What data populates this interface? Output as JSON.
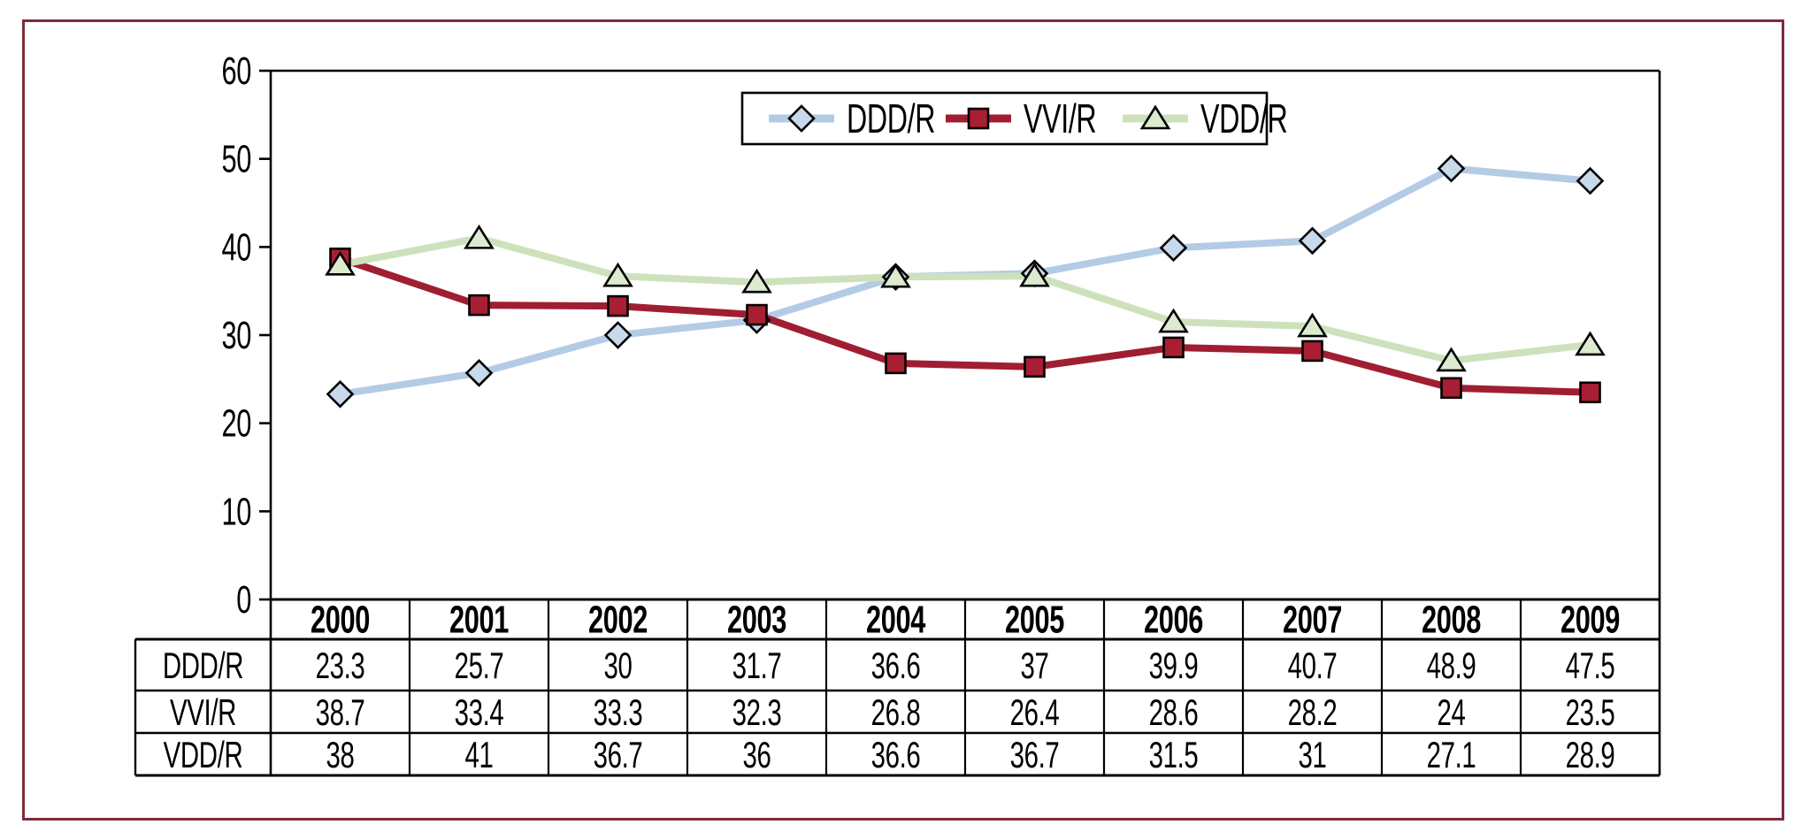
{
  "frame": {
    "border_color": "#7e2b3c",
    "background_color": "#ffffff"
  },
  "chart_data": {
    "type": "line",
    "title": "",
    "xlabel": "",
    "ylabel": "",
    "categories": [
      "2000",
      "2001",
      "2002",
      "2003",
      "2004",
      "2005",
      "2006",
      "2007",
      "2008",
      "2009"
    ],
    "series": [
      {
        "name": "DDD/R",
        "marker": "diamond",
        "line_color": "#b3cbe5",
        "marker_fill": "#c9d9ec",
        "marker_stroke": "#000000",
        "values": [
          23.3,
          25.7,
          30,
          31.7,
          36.6,
          37,
          39.9,
          40.7,
          48.9,
          47.5
        ]
      },
      {
        "name": "VVI/R",
        "marker": "square",
        "line_color": "#a01e32",
        "marker_fill": "#a81e33",
        "marker_stroke": "#000000",
        "values": [
          38.7,
          33.4,
          33.3,
          32.3,
          26.8,
          26.4,
          28.6,
          28.2,
          24,
          23.5
        ]
      },
      {
        "name": "VDD/R",
        "marker": "triangle",
        "line_color": "#cde2bc",
        "marker_fill": "#dcead0",
        "marker_stroke": "#000000",
        "values": [
          38,
          41,
          36.7,
          36,
          36.6,
          36.7,
          31.5,
          31,
          27.1,
          28.9
        ]
      }
    ],
    "ylim": [
      0,
      60
    ],
    "yticks": [
      0,
      10,
      20,
      30,
      40,
      50,
      60
    ],
    "grid": false,
    "axis_color": "#000000",
    "legend": {
      "position": "top-center",
      "entries": [
        "DDD/R",
        "VVI/R",
        "VDD/R"
      ]
    },
    "data_table": {
      "header": [
        "2000",
        "2001",
        "2002",
        "2003",
        "2004",
        "2005",
        "2006",
        "2007",
        "2008",
        "2009"
      ],
      "rows": [
        {
          "label": "DDD/R",
          "values": [
            23.3,
            25.7,
            30,
            31.7,
            36.6,
            37,
            39.9,
            40.7,
            48.9,
            47.5
          ]
        },
        {
          "label": "VVI/R",
          "values": [
            38.7,
            33.4,
            33.3,
            32.3,
            26.8,
            26.4,
            28.6,
            28.2,
            24,
            23.5
          ]
        },
        {
          "label": "VDD/R",
          "values": [
            38,
            41,
            36.7,
            36,
            36.6,
            36.7,
            31.5,
            31,
            27.1,
            28.9
          ]
        }
      ]
    }
  }
}
